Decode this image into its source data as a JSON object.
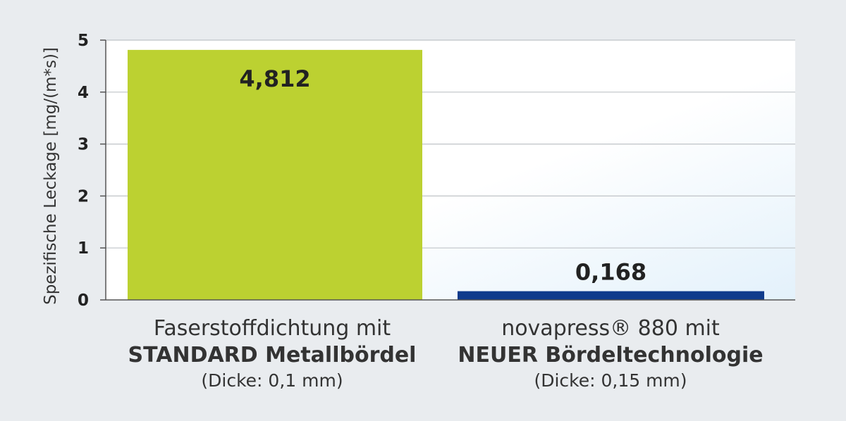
{
  "chart_data": {
    "type": "bar",
    "ylabel": "Spezifische Leckage [mg/(m*s)]",
    "ylim": [
      0,
      5
    ],
    "yticks": [
      "0",
      "1",
      "2",
      "3",
      "4",
      "5"
    ],
    "grid": true,
    "categories": [
      {
        "line1": "Faserstoffdichtung mit",
        "line2": "STANDARD Metallbördel",
        "line3": "(Dicke: 0,1 mm)"
      },
      {
        "line1": "novapress® 880 mit",
        "line2": "NEUER Bördeltechnologie",
        "line3": "(Dicke: 0,15 mm)"
      }
    ],
    "values": [
      4.812,
      0.168
    ],
    "value_labels": [
      "4,812",
      "0,168"
    ],
    "colors": [
      "#bcd131",
      "#0f3b8c"
    ]
  }
}
